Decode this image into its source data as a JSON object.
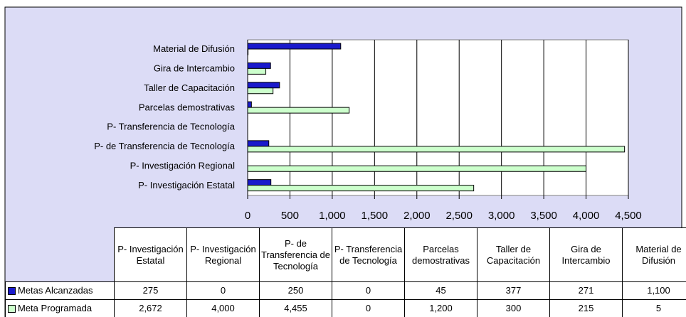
{
  "chart_data": {
    "type": "hbar",
    "categories": [
      "P- Investigación Estatal",
      "P- Investigación Regional",
      "P- de Transferencia de Tecnología",
      "P- Transferencia de Tecnología",
      "Parcelas demostrativas",
      "Taller de Capacitación",
      "Gira de Intercambio",
      "Material de Difusión"
    ],
    "series": [
      {
        "name": "Metas Alcanzadas",
        "color": "#1a1acc",
        "values": [
          275,
          0,
          250,
          0,
          45,
          377,
          271,
          1100
        ],
        "value_labels": [
          "275",
          "0",
          "250",
          "0",
          "45",
          "377",
          "271",
          "1,100"
        ]
      },
      {
        "name": "Meta Programada",
        "color": "#ccffcc",
        "values": [
          2672,
          4000,
          4455,
          0,
          1200,
          300,
          215,
          5
        ],
        "value_labels": [
          "2,672",
          "4,000",
          "4,455",
          "0",
          "1,200",
          "300",
          "215",
          "5"
        ]
      }
    ],
    "xlim": [
      0,
      4500
    ],
    "xticks": [
      0,
      500,
      {
        "value": 1000,
        "label": "1,000"
      },
      {
        "value": 1500,
        "label": "1,500"
      },
      {
        "value": 2000,
        "label": "2,000"
      },
      {
        "value": 2500,
        "label": "2,500"
      },
      {
        "value": 3000,
        "label": "3,000"
      },
      {
        "value": 3500,
        "label": "3,500"
      },
      {
        "value": 4000,
        "label": "4,000"
      },
      {
        "value": 4500,
        "label": "4,500"
      }
    ],
    "grid": true
  }
}
